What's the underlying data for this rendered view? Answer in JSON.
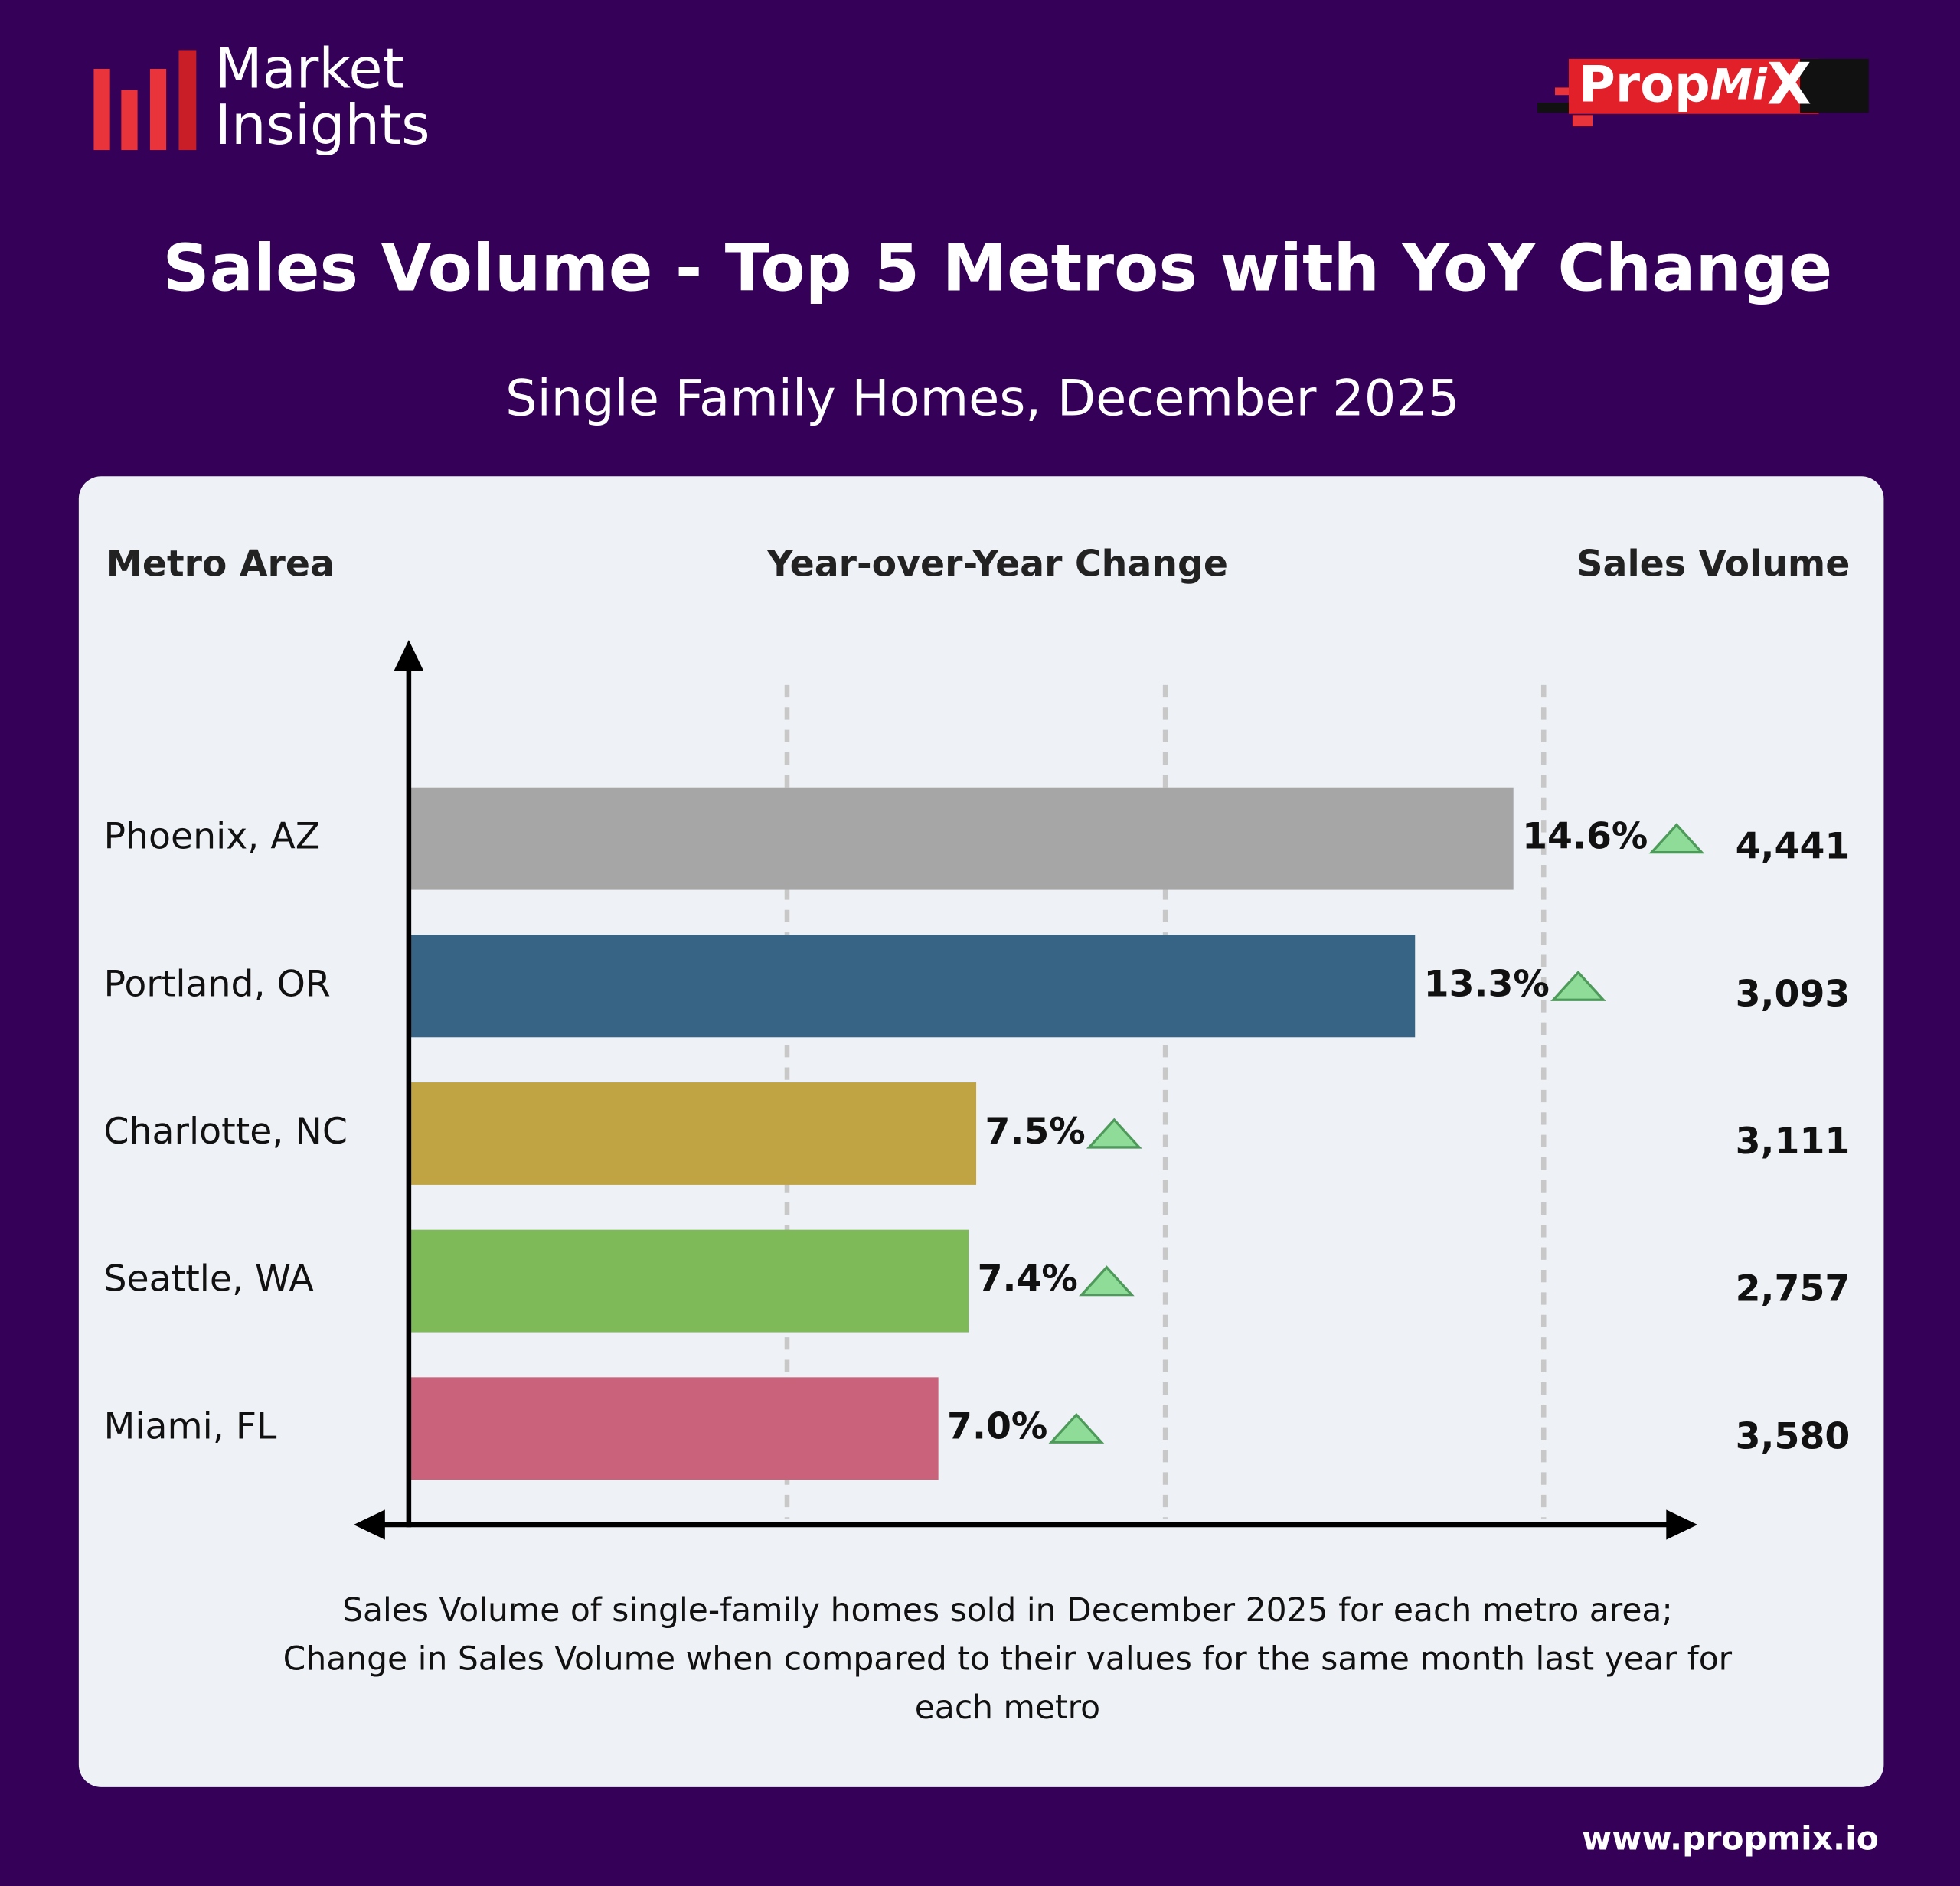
{
  "header": {
    "brand_lines": [
      "Market",
      "Insights"
    ],
    "logo_parts": [
      "Prop",
      "Mi",
      "X"
    ],
    "website": "www.propmix.io"
  },
  "chart_data": {
    "type": "bar",
    "orientation": "horizontal",
    "title": "Sales Volume - Top 5 Metros with YoY Change",
    "subtitle": "Single Family Homes, December 2025",
    "category_header": "Metro Area",
    "x_label": "Year-over-Year Change",
    "categories": [
      "Phoenix, AZ",
      "Portland, OR",
      "Charlotte, NC",
      "Seattle, WA",
      "Miami, FL"
    ],
    "values": [
      14.6,
      13.3,
      7.5,
      7.4,
      7.0
    ],
    "value_labels": [
      "14.6%",
      "13.3%",
      "7.5%",
      "7.4%",
      "7.0%"
    ],
    "colors": [
      "#a6a6a6",
      "#376384",
      "#c0a444",
      "#7fba58",
      "#cb627b"
    ],
    "xlim": [
      0,
      17
    ],
    "xticks": [
      5,
      10,
      15
    ],
    "grid": true,
    "sales_volume_header": "Sales Volume",
    "sales_volume_labels": [
      "4,441",
      "3,093",
      "3,111",
      "2,757",
      "3,580"
    ],
    "footnote": [
      "Sales Volume of single-family homes sold in December 2025 for each metro area;",
      "Change in Sales Volume when compared to their values for the same month last year for",
      "each metro"
    ]
  }
}
